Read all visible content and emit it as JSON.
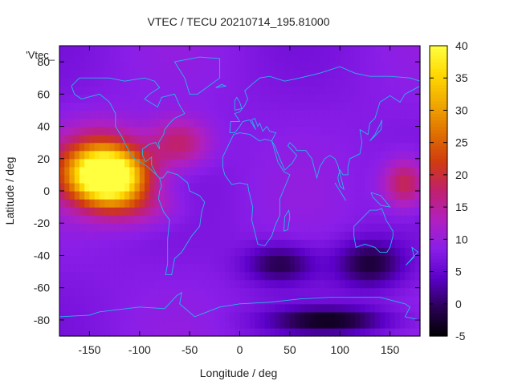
{
  "chart_data": {
    "type": "heatmap",
    "title": "VTEC / TECU 20210714_195.81000",
    "xlabel": "Longitude / deg",
    "ylabel": "Latitude / deg",
    "key_label": "'Vtec_",
    "xlim": [
      -180,
      180
    ],
    "ylim": [
      -90,
      90
    ],
    "x_ticks": [
      -150,
      -100,
      -50,
      0,
      50,
      100,
      150
    ],
    "y_ticks": [
      -80,
      -60,
      -40,
      -20,
      0,
      20,
      40,
      60,
      80
    ],
    "x_tick_labels": [
      "-150",
      "-100",
      "-50",
      "0",
      "50",
      "100",
      "150"
    ],
    "y_tick_labels": [
      "-80",
      "-60",
      "-40",
      "-20",
      "0",
      "20",
      "40",
      "60",
      "80"
    ],
    "colorbar": {
      "range": [
        -5,
        40
      ],
      "ticks": [
        -5,
        0,
        5,
        10,
        15,
        20,
        25,
        30,
        35,
        40
      ],
      "tick_labels": [
        "-5",
        "0",
        "5",
        "10",
        "15",
        "20",
        "25",
        "30",
        "35",
        "40"
      ],
      "palette": [
        "#000000",
        "#2a0055",
        "#5b00c8",
        "#8a1ee8",
        "#b020c0",
        "#c02070",
        "#d03a10",
        "#e07000",
        "#f0a800",
        "#ffd800",
        "#ffff40"
      ]
    },
    "background_value": 8,
    "hotspots": [
      {
        "lon": -130,
        "lat": 8,
        "value": 36,
        "sx": 35,
        "sy": 16
      },
      {
        "lon": -140,
        "lat": 15,
        "value": 28,
        "sx": 45,
        "sy": 22
      },
      {
        "lon": -60,
        "lat": 30,
        "value": 18,
        "sx": 30,
        "sy": 15
      },
      {
        "lon": 165,
        "lat": 5,
        "value": 20,
        "sx": 22,
        "sy": 15
      },
      {
        "lon": -100,
        "lat": -10,
        "value": 14,
        "sx": 40,
        "sy": 12
      },
      {
        "lon": 40,
        "lat": -45,
        "value": -1,
        "sx": 35,
        "sy": 12
      },
      {
        "lon": 130,
        "lat": -45,
        "value": -2,
        "sx": 35,
        "sy": 15
      },
      {
        "lon": 90,
        "lat": -80,
        "value": -3,
        "sx": 60,
        "sy": 8
      }
    ]
  },
  "coastlines": [
    [
      [
        -168,
        65
      ],
      [
        -160,
        70
      ],
      [
        -145,
        70
      ],
      [
        -130,
        70
      ],
      [
        -115,
        68
      ],
      [
        -95,
        70
      ],
      [
        -85,
        68
      ],
      [
        -80,
        64
      ],
      [
        -90,
        60
      ],
      [
        -95,
        57
      ],
      [
        -82,
        52
      ],
      [
        -78,
        58
      ],
      [
        -65,
        60
      ],
      [
        -60,
        53
      ],
      [
        -55,
        48
      ],
      [
        -65,
        45
      ],
      [
        -70,
        42
      ],
      [
        -75,
        38
      ],
      [
        -76,
        35
      ],
      [
        -81,
        30
      ],
      [
        -80,
        26
      ],
      [
        -82,
        28
      ],
      [
        -84,
        30
      ],
      [
        -90,
        29
      ],
      [
        -97,
        26
      ],
      [
        -97,
        22
      ],
      [
        -94,
        18
      ],
      [
        -88,
        21
      ],
      [
        -88,
        16
      ],
      [
        -83,
        10
      ],
      [
        -80,
        8
      ],
      [
        -85,
        11
      ],
      [
        -92,
        15
      ],
      [
        -105,
        20
      ],
      [
        -110,
        24
      ],
      [
        -115,
        30
      ],
      [
        -118,
        34
      ],
      [
        -124,
        40
      ],
      [
        -124,
        48
      ],
      [
        -130,
        55
      ],
      [
        -140,
        60
      ],
      [
        -152,
        58
      ],
      [
        -158,
        57
      ],
      [
        -165,
        60
      ],
      [
        -168,
        65
      ]
    ],
    [
      [
        -80,
        8
      ],
      [
        -77,
        8
      ],
      [
        -72,
        12
      ],
      [
        -62,
        10
      ],
      [
        -52,
        5
      ],
      [
        -50,
        0
      ],
      [
        -40,
        -3
      ],
      [
        -35,
        -7
      ],
      [
        -38,
        -13
      ],
      [
        -40,
        -22
      ],
      [
        -48,
        -28
      ],
      [
        -58,
        -38
      ],
      [
        -65,
        -42
      ],
      [
        -68,
        -52
      ],
      [
        -74,
        -52
      ],
      [
        -72,
        -45
      ],
      [
        -72,
        -30
      ],
      [
        -70,
        -18
      ],
      [
        -76,
        -13
      ],
      [
        -81,
        -5
      ],
      [
        -80,
        0
      ],
      [
        -78,
        3
      ],
      [
        -80,
        8
      ]
    ],
    [
      [
        -50,
        60
      ],
      [
        -42,
        60
      ],
      [
        -20,
        70
      ],
      [
        -20,
        82
      ],
      [
        -40,
        83
      ],
      [
        -65,
        80
      ],
      [
        -60,
        75
      ],
      [
        -55,
        70
      ],
      [
        -50,
        60
      ]
    ],
    [
      [
        -10,
        36
      ],
      [
        -9,
        43
      ],
      [
        0,
        43
      ],
      [
        -5,
        48
      ],
      [
        0,
        49
      ],
      [
        5,
        53
      ],
      [
        8,
        57
      ],
      [
        5,
        62
      ],
      [
        12,
        66
      ],
      [
        20,
        70
      ],
      [
        30,
        71
      ],
      [
        45,
        68
      ],
      [
        60,
        70
      ],
      [
        80,
        73
      ],
      [
        100,
        77
      ],
      [
        115,
        73
      ],
      [
        130,
        71
      ],
      [
        150,
        71
      ],
      [
        170,
        70
      ],
      [
        180,
        68
      ],
      [
        180,
        65
      ],
      [
        165,
        60
      ],
      [
        160,
        55
      ],
      [
        150,
        59
      ],
      [
        140,
        55
      ],
      [
        135,
        45
      ],
      [
        130,
        42
      ],
      [
        128,
        35
      ],
      [
        120,
        38
      ],
      [
        122,
        30
      ],
      [
        120,
        23
      ],
      [
        110,
        20
      ],
      [
        108,
        15
      ],
      [
        108,
        10
      ],
      [
        103,
        10
      ],
      [
        100,
        13
      ],
      [
        98,
        8
      ],
      [
        100,
        3
      ],
      [
        104,
        1
      ],
      [
        98,
        16
      ],
      [
        95,
        20
      ],
      [
        90,
        22
      ],
      [
        85,
        20
      ],
      [
        80,
        15
      ],
      [
        77,
        8
      ],
      [
        72,
        20
      ],
      [
        66,
        25
      ],
      [
        57,
        25
      ],
      [
        55,
        27
      ],
      [
        50,
        30
      ],
      [
        48,
        28
      ],
      [
        57,
        22
      ],
      [
        52,
        17
      ],
      [
        45,
        13
      ],
      [
        40,
        20
      ],
      [
        35,
        28
      ],
      [
        32,
        31
      ],
      [
        36,
        36
      ],
      [
        30,
        37
      ],
      [
        27,
        40
      ],
      [
        23,
        37
      ],
      [
        20,
        42
      ],
      [
        18,
        40
      ],
      [
        15,
        45
      ],
      [
        12,
        44
      ],
      [
        16,
        38
      ],
      [
        10,
        44
      ],
      [
        3,
        43
      ],
      [
        0,
        40
      ],
      [
        -5,
        36
      ],
      [
        -10,
        36
      ]
    ],
    [
      [
        -17,
        21
      ],
      [
        -17,
        15
      ],
      [
        -15,
        10
      ],
      [
        -8,
        4
      ],
      [
        0,
        5
      ],
      [
        8,
        4
      ],
      [
        9,
        0
      ],
      [
        13,
        -10
      ],
      [
        12,
        -18
      ],
      [
        18,
        -33
      ],
      [
        25,
        -34
      ],
      [
        32,
        -28
      ],
      [
        35,
        -22
      ],
      [
        40,
        -15
      ],
      [
        40,
        -5
      ],
      [
        50,
        10
      ],
      [
        44,
        12
      ],
      [
        38,
        18
      ],
      [
        34,
        27
      ],
      [
        32,
        31
      ],
      [
        25,
        32
      ],
      [
        20,
        31
      ],
      [
        10,
        35
      ],
      [
        0,
        36
      ],
      [
        -6,
        35
      ],
      [
        -10,
        30
      ],
      [
        -17,
        21
      ]
    ],
    [
      [
        114,
        -22
      ],
      [
        114,
        -28
      ],
      [
        116,
        -35
      ],
      [
        125,
        -33
      ],
      [
        135,
        -35
      ],
      [
        140,
        -38
      ],
      [
        147,
        -38
      ],
      [
        150,
        -35
      ],
      [
        153,
        -28
      ],
      [
        153,
        -25
      ],
      [
        146,
        -18
      ],
      [
        142,
        -11
      ],
      [
        137,
        -12
      ],
      [
        130,
        -12
      ],
      [
        122,
        -17
      ],
      [
        114,
        -22
      ]
    ],
    [
      [
        -180,
        -78
      ],
      [
        -150,
        -77
      ],
      [
        -140,
        -75
      ],
      [
        -100,
        -72
      ],
      [
        -75,
        -73
      ],
      [
        -63,
        -65
      ],
      [
        -58,
        -63
      ],
      [
        -60,
        -70
      ],
      [
        -45,
        -78
      ],
      [
        -20,
        -72
      ],
      [
        0,
        -70
      ],
      [
        30,
        -69
      ],
      [
        60,
        -67
      ],
      [
        90,
        -66
      ],
      [
        120,
        -66
      ],
      [
        140,
        -66
      ],
      [
        165,
        -70
      ],
      [
        170,
        -72
      ],
      [
        165,
        -78
      ],
      [
        180,
        -80
      ]
    ],
    [
      [
        44,
        -25
      ],
      [
        48,
        -24
      ],
      [
        50,
        -16
      ],
      [
        49,
        -12
      ],
      [
        45,
        -16
      ],
      [
        44,
        -25
      ]
    ],
    [
      [
        -5,
        50
      ],
      [
        2,
        51
      ],
      [
        0,
        55
      ],
      [
        -3,
        58
      ],
      [
        -5,
        56
      ],
      [
        -5,
        50
      ]
    ],
    [
      [
        130,
        31
      ],
      [
        135,
        34
      ],
      [
        141,
        38
      ],
      [
        142,
        44
      ],
      [
        140,
        41
      ],
      [
        135,
        35
      ],
      [
        130,
        31
      ]
    ],
    [
      [
        95,
        5
      ],
      [
        105,
        -5
      ],
      [
        106,
        -6
      ],
      [
        100,
        0
      ],
      [
        95,
        5
      ]
    ],
    [
      [
        131,
        -1
      ],
      [
        141,
        -3
      ],
      [
        150,
        -10
      ],
      [
        141,
        -9
      ],
      [
        133,
        -4
      ],
      [
        131,
        -1
      ]
    ],
    [
      [
        -24,
        64
      ],
      [
        -14,
        65
      ],
      [
        -18,
        66
      ],
      [
        -24,
        64
      ]
    ],
    [
      [
        166,
        -46
      ],
      [
        173,
        -41
      ],
      [
        178,
        -38
      ],
      [
        172,
        -35
      ],
      [
        174,
        -41
      ],
      [
        166,
        -46
      ]
    ]
  ]
}
